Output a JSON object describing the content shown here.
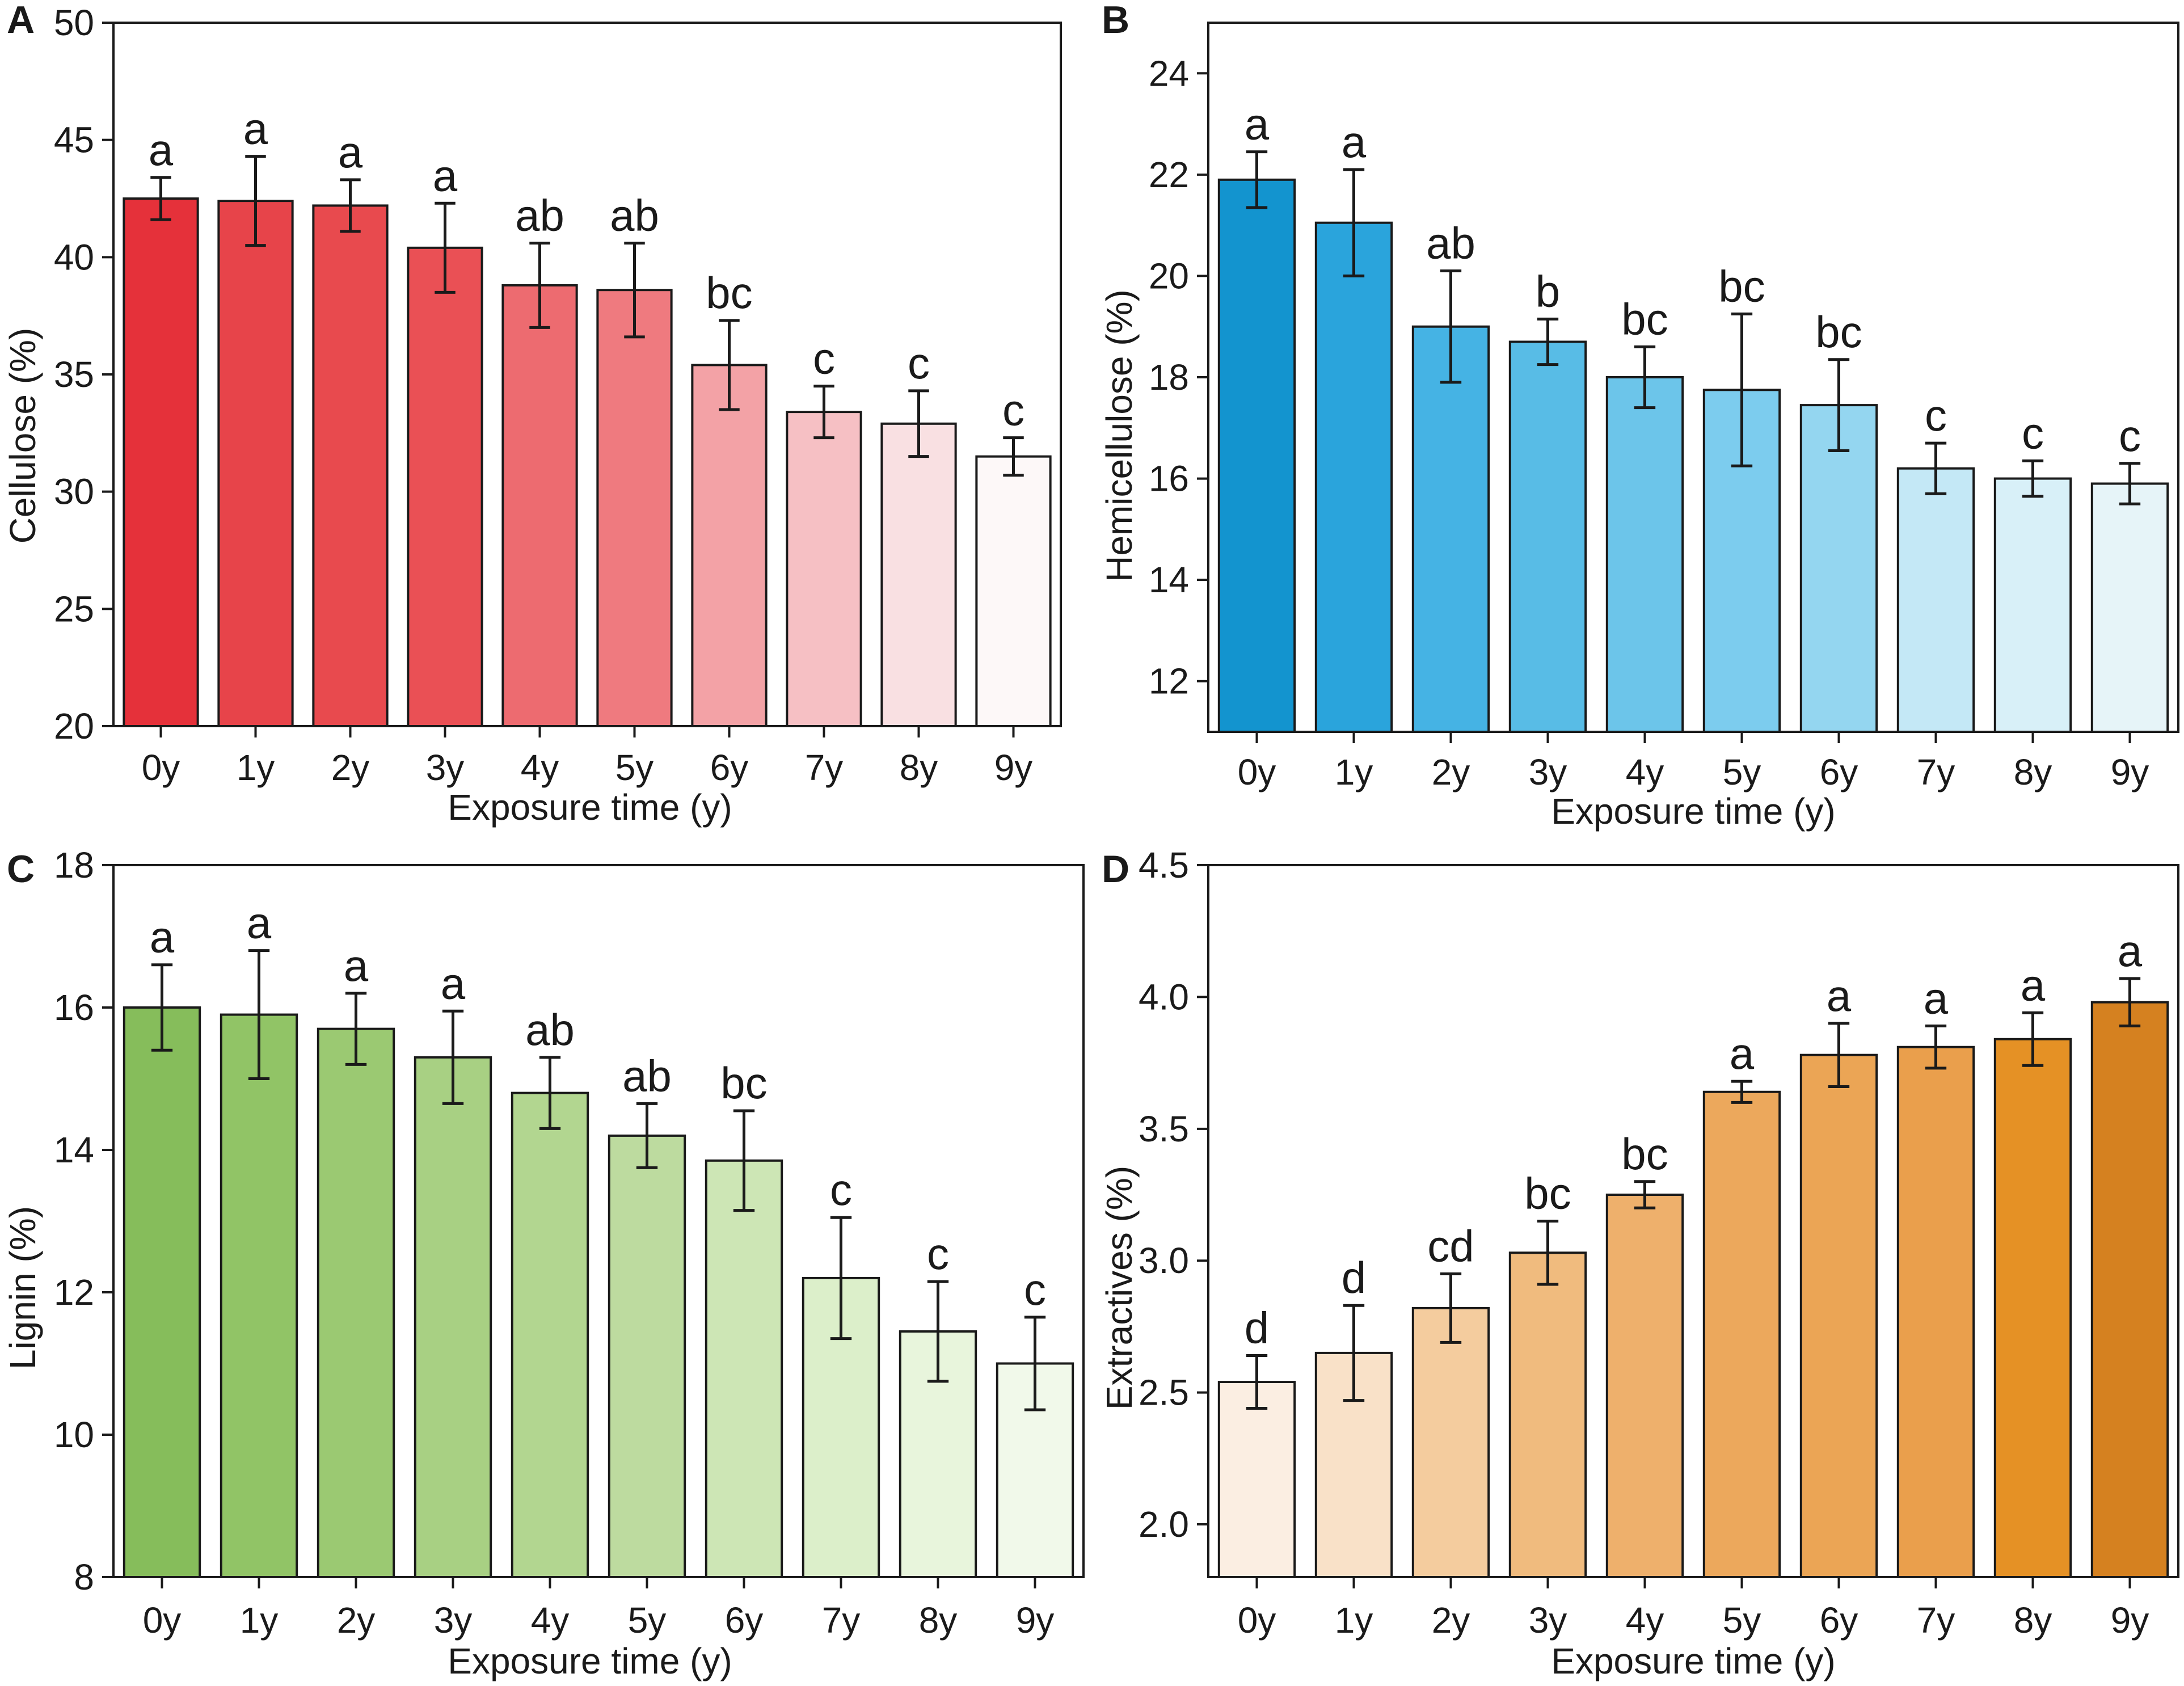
{
  "chart_data": [
    {
      "panel": "A",
      "type": "bar",
      "xlabel": "Exposure time (y)",
      "ylabel": "Cellulose (%)",
      "ylim": [
        20,
        50
      ],
      "yticks": [
        20,
        25,
        30,
        35,
        40,
        45,
        50
      ],
      "categories": [
        "0y",
        "1y",
        "2y",
        "3y",
        "4y",
        "5y",
        "6y",
        "7y",
        "8y",
        "9y"
      ],
      "values": [
        42.5,
        42.4,
        42.2,
        40.4,
        38.8,
        38.6,
        35.4,
        33.4,
        32.9,
        31.5
      ],
      "errors": [
        0.9,
        1.9,
        1.1,
        1.9,
        1.8,
        2.0,
        1.9,
        1.1,
        1.4,
        0.8
      ],
      "significance": [
        "a",
        "a",
        "a",
        "a",
        "ab",
        "ab",
        "bc",
        "c",
        "c",
        "c"
      ],
      "colors": [
        "#e5313a",
        "#e7444a",
        "#e84a4e",
        "#ea5055",
        "#ed6b70",
        "#ef7a7f",
        "#f3a2a6",
        "#f6c0c4",
        "#f9e0e2",
        "#fdf8f8"
      ]
    },
    {
      "panel": "B",
      "type": "bar",
      "xlabel": "Exposure time (y)",
      "ylabel": "Hemicellulose (%)",
      "ylim": [
        11,
        25
      ],
      "yticks": [
        12,
        14,
        16,
        18,
        20,
        22,
        24
      ],
      "categories": [
        "0y",
        "1y",
        "2y",
        "3y",
        "4y",
        "5y",
        "6y",
        "7y",
        "8y",
        "9y"
      ],
      "values": [
        21.9,
        21.05,
        19.0,
        18.7,
        18.0,
        17.75,
        17.45,
        16.2,
        16.0,
        15.9
      ],
      "errors": [
        0.55,
        1.05,
        1.1,
        0.45,
        0.6,
        1.5,
        0.9,
        0.5,
        0.35,
        0.4
      ],
      "significance": [
        "a",
        "a",
        "ab",
        "b",
        "bc",
        "bc",
        "bc",
        "c",
        "c",
        "c"
      ],
      "colors": [
        "#1394cf",
        "#2aa4dc",
        "#45b3e4",
        "#58bce6",
        "#6cc5ea",
        "#7cccee",
        "#94d6f0",
        "#c4e8f6",
        "#d8f0f8",
        "#e6f4f8"
      ]
    },
    {
      "panel": "C",
      "type": "bar",
      "xlabel": "Exposure time (y)",
      "ylabel": "Lignin (%)",
      "ylim": [
        8,
        18
      ],
      "yticks": [
        8,
        10,
        12,
        14,
        16,
        18
      ],
      "categories": [
        "0y",
        "1y",
        "2y",
        "3y",
        "4y",
        "5y",
        "6y",
        "7y",
        "8y",
        "9y"
      ],
      "values": [
        16.0,
        15.9,
        15.7,
        15.3,
        14.8,
        14.2,
        13.85,
        12.2,
        11.45,
        11.0
      ],
      "errors": [
        0.6,
        0.9,
        0.5,
        0.65,
        0.5,
        0.45,
        0.7,
        0.85,
        0.7,
        0.65
      ],
      "significance": [
        "a",
        "a",
        "a",
        "a",
        "ab",
        "ab",
        "bc",
        "c",
        "c",
        "c"
      ],
      "colors": [
        "#86bd5b",
        "#91c466",
        "#9bc972",
        "#a8d083",
        "#b2d690",
        "#bddb9f",
        "#cde6b5",
        "#dcefca",
        "#e8f5dc",
        "#f1f9ea"
      ]
    },
    {
      "panel": "D",
      "type": "bar",
      "xlabel": "Exposure time (y)",
      "ylabel": "Extractives (%)",
      "ylim": [
        1.8,
        4.5
      ],
      "yticks": [
        2.0,
        2.5,
        3.0,
        3.5,
        4.0,
        4.5
      ],
      "categories": [
        "0y",
        "1y",
        "2y",
        "3y",
        "4y",
        "5y",
        "6y",
        "7y",
        "8y",
        "9y"
      ],
      "values": [
        2.54,
        2.65,
        2.82,
        3.03,
        3.25,
        3.64,
        3.78,
        3.81,
        3.84,
        3.98
      ],
      "errors": [
        0.1,
        0.18,
        0.13,
        0.12,
        0.05,
        0.04,
        0.12,
        0.08,
        0.1,
        0.09
      ],
      "significance": [
        "d",
        "d",
        "cd",
        "bc",
        "bc",
        "a",
        "a",
        "a",
        "a",
        "a"
      ],
      "colors": [
        "#fbeee2",
        "#f9e1c8",
        "#f4cc9e",
        "#f0bb7e",
        "#eeb06c",
        "#eca85c",
        "#eba555",
        "#ea9f4c",
        "#e59125",
        "#d58120"
      ]
    }
  ]
}
